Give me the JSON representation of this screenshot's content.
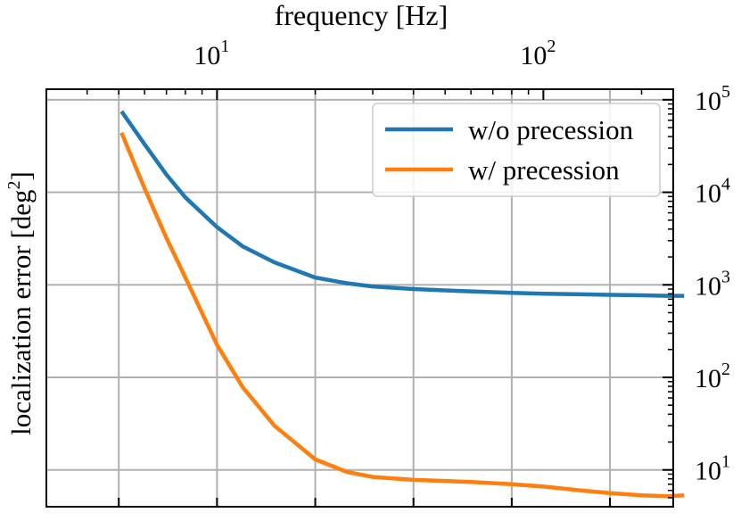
{
  "chart_data": {
    "type": "line",
    "top_axis": {
      "label": "frequency [Hz]",
      "scale": "log",
      "tick_labels": [
        {
          "value": 10,
          "base": "10",
          "exp": "1"
        },
        {
          "value": 100,
          "base": "10",
          "exp": "2"
        }
      ],
      "range": [
        3.0,
        250
      ]
    },
    "y_axis": {
      "label_main": "localization error [deg",
      "label_sup": "2",
      "label_close": "]",
      "scale": "log",
      "side": "right",
      "tick_labels": [
        {
          "value": 10,
          "base": "10",
          "exp": "1"
        },
        {
          "value": 100,
          "base": "10",
          "exp": "2"
        },
        {
          "value": 1000,
          "base": "10",
          "exp": "3"
        },
        {
          "value": 10000,
          "base": "10",
          "exp": "4"
        },
        {
          "value": 100000,
          "base": "10",
          "exp": "5"
        }
      ],
      "range": [
        4,
        130000
      ]
    },
    "bottom_grid_positions": [
      5,
      10,
      20,
      40,
      80,
      160
    ],
    "grid": true,
    "legend_position": "top-right",
    "series": [
      {
        "name": "w/o precession",
        "color": "#1f77b4",
        "x": [
          5.1,
          6,
          7,
          8,
          10,
          12,
          15,
          20,
          25,
          30,
          40,
          50,
          60,
          80,
          100,
          130,
          160,
          200,
          240,
          270
        ],
        "y": [
          75000,
          33000,
          15500,
          8800,
          4200,
          2600,
          1750,
          1200,
          1040,
          960,
          900,
          870,
          850,
          820,
          800,
          790,
          780,
          770,
          760,
          760
        ]
      },
      {
        "name": "w/ precession",
        "color": "#ff7f0e",
        "x": [
          5.1,
          6,
          7,
          8,
          10,
          12,
          15,
          20,
          25,
          30,
          40,
          50,
          60,
          80,
          100,
          130,
          160,
          200,
          240,
          270
        ],
        "y": [
          44000,
          11000,
          3200,
          1200,
          225,
          78,
          30,
          13,
          9.5,
          8.4,
          7.8,
          7.6,
          7.4,
          7.0,
          6.6,
          6.0,
          5.6,
          5.3,
          5.2,
          5.3
        ]
      }
    ]
  }
}
